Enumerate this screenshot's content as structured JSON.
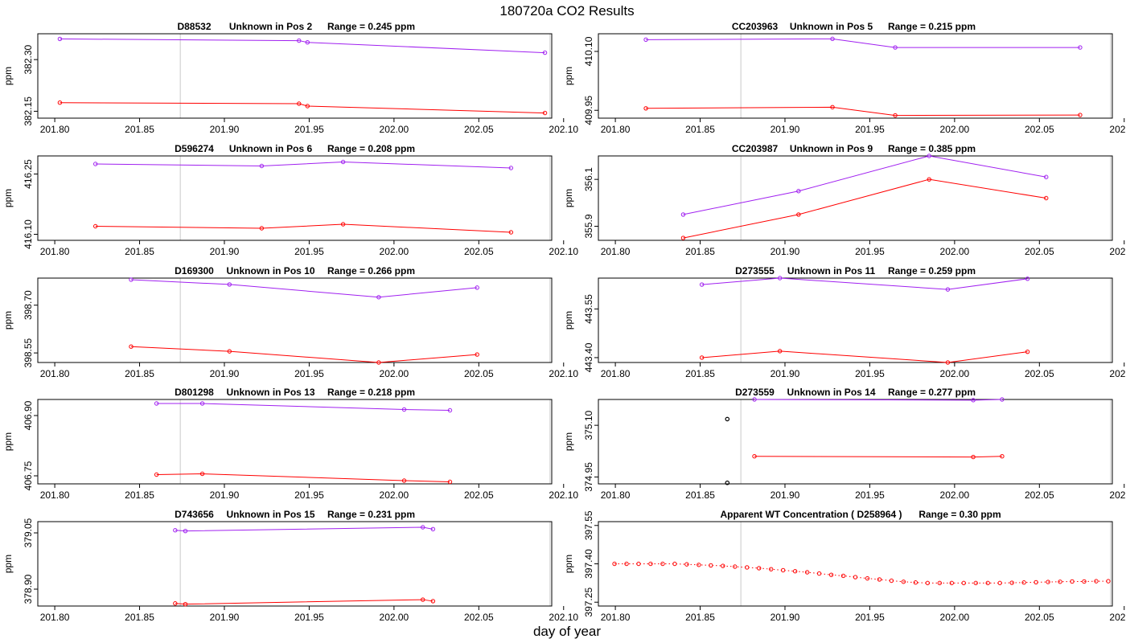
{
  "page_title": "180720a  CO2 Results",
  "xlabel": "day of year",
  "ylabel": "ppm",
  "colors": {
    "series_a": "#a020f0",
    "series_b": "#ff0000",
    "marker": "#000000",
    "vline": "#c8c8c8",
    "frame": "#000000"
  },
  "x_ticks": [
    "201.80",
    "201.85",
    "201.90",
    "201.95",
    "202.00",
    "202.05",
    "202.10"
  ],
  "chart_data": [
    {
      "type": "line",
      "id": "D88532",
      "title_id": "D88532",
      "title_label": "Unknown in Pos 2",
      "title_range": "Range =  0.245 ppm",
      "xlim": [
        201.79,
        202.095
      ],
      "ylim": [
        382.13,
        382.375
      ],
      "ylabel": "ppm",
      "y_ticks": [
        "382.15",
        "382.30"
      ],
      "vlines": [
        201.874,
        202.092
      ],
      "series": [
        {
          "name": "upper",
          "color": "#a020f0",
          "x": [
            201.803,
            201.944,
            201.949,
            202.089
          ],
          "y": [
            382.36,
            382.355,
            382.35,
            382.32
          ]
        },
        {
          "name": "lower",
          "color": "#ff0000",
          "x": [
            201.803,
            201.944,
            201.949,
            202.089
          ],
          "y": [
            382.175,
            382.172,
            382.165,
            382.145
          ]
        }
      ]
    },
    {
      "type": "line",
      "id": "CC203963",
      "title_id": "CC203963",
      "title_label": "Unknown in Pos 5",
      "title_range": "Range =  0.215 ppm",
      "xlim": [
        201.79,
        202.103
      ],
      "ylim": [
        409.93,
        410.145
      ],
      "ylabel": "ppm",
      "y_ticks": [
        "409.95",
        "410.10"
      ],
      "vlines": [
        201.874,
        202.092
      ],
      "series": [
        {
          "name": "upper",
          "color": "#a020f0",
          "x": [
            201.818,
            201.928,
            201.965,
            202.074
          ],
          "y": [
            410.13,
            410.132,
            410.11,
            410.11
          ]
        },
        {
          "name": "lower",
          "color": "#ff0000",
          "x": [
            201.818,
            201.928,
            201.965,
            202.074
          ],
          "y": [
            409.955,
            409.958,
            409.937,
            409.938
          ]
        }
      ]
    },
    {
      "type": "line",
      "id": "D596274",
      "title_id": "D596274",
      "title_label": "Unknown in Pos 6",
      "title_range": "Range =  0.208 ppm",
      "xlim": [
        201.79,
        202.095
      ],
      "ylim": [
        416.085,
        416.295
      ],
      "ylabel": "ppm",
      "y_ticks": [
        "416.10",
        "416.25"
      ],
      "vlines": [
        201.874,
        202.092
      ],
      "series": [
        {
          "name": "upper",
          "color": "#a020f0",
          "x": [
            201.824,
            201.922,
            201.97,
            202.069
          ],
          "y": [
            416.275,
            416.27,
            416.28,
            416.265
          ]
        },
        {
          "name": "lower",
          "color": "#ff0000",
          "x": [
            201.824,
            201.922,
            201.97,
            202.069
          ],
          "y": [
            416.12,
            416.115,
            416.125,
            416.105
          ]
        }
      ]
    },
    {
      "type": "line",
      "id": "CC203987",
      "title_id": "CC203987",
      "title_label": "Unknown in Pos 9",
      "title_range": "Range =  0.385 ppm",
      "xlim": [
        201.79,
        202.103
      ],
      "ylim": [
        355.84,
        356.2
      ],
      "ylabel": "ppm",
      "y_ticks": [
        "355.9",
        "356.1"
      ],
      "vlines": [
        201.874,
        202.092
      ],
      "series": [
        {
          "name": "upper",
          "color": "#a020f0",
          "x": [
            201.84,
            201.908,
            201.985,
            202.054
          ],
          "y": [
            355.95,
            356.05,
            356.2,
            356.11
          ]
        },
        {
          "name": "lower",
          "color": "#ff0000",
          "x": [
            201.84,
            201.908,
            201.985,
            202.054
          ],
          "y": [
            355.85,
            355.95,
            356.1,
            356.02
          ]
        }
      ]
    },
    {
      "type": "line",
      "id": "D169300",
      "title_id": "D169300",
      "title_label": "Unknown in Pos 10",
      "title_range": "Range =  0.266 ppm",
      "xlim": [
        201.79,
        202.095
      ],
      "ylim": [
        398.52,
        398.785
      ],
      "ylabel": "ppm",
      "y_ticks": [
        "398.55",
        "398.70"
      ],
      "vlines": [
        201.874,
        202.092
      ],
      "series": [
        {
          "name": "upper",
          "color": "#a020f0",
          "x": [
            201.845,
            201.903,
            201.991,
            202.049
          ],
          "y": [
            398.78,
            398.765,
            398.725,
            398.755
          ]
        },
        {
          "name": "lower",
          "color": "#ff0000",
          "x": [
            201.845,
            201.903,
            201.991,
            202.049
          ],
          "y": [
            398.57,
            398.555,
            398.52,
            398.545
          ]
        }
      ]
    },
    {
      "type": "line",
      "id": "D273555",
      "title_id": "D273555",
      "title_label": "Unknown in Pos 11",
      "title_range": "Range =  0.259 ppm",
      "xlim": [
        201.79,
        202.103
      ],
      "ylim": [
        443.385,
        443.645
      ],
      "ylabel": "ppm",
      "y_ticks": [
        "443.40",
        "443.55"
      ],
      "vlines": [
        201.874,
        202.092
      ],
      "series": [
        {
          "name": "upper",
          "color": "#a020f0",
          "x": [
            201.851,
            201.897,
            201.996,
            202.043
          ],
          "y": [
            443.625,
            443.645,
            443.61,
            443.643
          ]
        },
        {
          "name": "lower",
          "color": "#ff0000",
          "x": [
            201.851,
            201.897,
            201.996,
            202.043
          ],
          "y": [
            443.4,
            443.42,
            443.385,
            443.418
          ]
        }
      ]
    },
    {
      "type": "line",
      "id": "D801298",
      "title_id": "D801298",
      "title_label": "Unknown in Pos 13",
      "title_range": "Range =  0.218 ppm",
      "xlim": [
        201.79,
        202.095
      ],
      "ylim": [
        406.73,
        406.94
      ],
      "ylabel": "ppm",
      "y_ticks": [
        "406.75",
        "406.90"
      ],
      "vlines": [
        201.874,
        202.092
      ],
      "series": [
        {
          "name": "upper",
          "color": "#a020f0",
          "x": [
            201.86,
            201.887,
            202.006,
            202.033
          ],
          "y": [
            406.93,
            406.93,
            406.915,
            406.913
          ]
        },
        {
          "name": "lower",
          "color": "#ff0000",
          "x": [
            201.86,
            201.887,
            202.006,
            202.033
          ],
          "y": [
            406.753,
            406.755,
            406.738,
            406.735
          ]
        }
      ]
    },
    {
      "type": "line",
      "id": "D273559",
      "title_id": "D273559",
      "title_label": "Unknown in Pos 14",
      "title_range": "Range =  0.277 ppm",
      "xlim": [
        201.79,
        202.103
      ],
      "ylim": [
        374.93,
        375.175
      ],
      "ylabel": "ppm",
      "y_ticks": [
        "374.95",
        "375.10"
      ],
      "vlines": [
        201.874,
        202.092
      ],
      "series": [
        {
          "name": "upper",
          "color": "#a020f0",
          "x": [
            201.882,
            202.011,
            202.028
          ],
          "y": [
            375.175,
            375.173,
            375.175
          ]
        },
        {
          "name": "lower",
          "color": "#ff0000",
          "x": [
            201.882,
            202.011,
            202.028
          ],
          "y": [
            375.01,
            375.008,
            375.01
          ]
        }
      ],
      "markers": [
        {
          "x": 201.866,
          "y": 375.118
        },
        {
          "x": 201.866,
          "y": 374.933
        }
      ]
    },
    {
      "type": "line",
      "id": "D743656",
      "title_id": "D743656",
      "title_label": "Unknown in Pos 15",
      "title_range": "Range =  0.231 ppm",
      "xlim": [
        201.79,
        202.095
      ],
      "ylim": [
        378.855,
        379.08
      ],
      "ylabel": "ppm",
      "y_ticks": [
        "378.90",
        "379.05"
      ],
      "vlines": [
        201.874,
        202.092
      ],
      "series": [
        {
          "name": "upper",
          "color": "#a020f0",
          "x": [
            201.871,
            201.877,
            202.017,
            202.023
          ],
          "y": [
            379.057,
            379.055,
            379.065,
            379.06
          ]
        },
        {
          "name": "lower",
          "color": "#ff0000",
          "x": [
            201.871,
            201.877,
            202.017,
            202.023
          ],
          "y": [
            378.862,
            378.86,
            378.872,
            378.868
          ]
        }
      ]
    },
    {
      "type": "scatter",
      "id": "WT",
      "title_id": "Apparent WT Concentration ( D258964 )",
      "title_label": "",
      "title_range": "Range = 0.30 ppm",
      "xlim": [
        201.79,
        202.103
      ],
      "ylim": [
        397.235,
        397.565
      ],
      "ylabel": "ppm",
      "y_ticks": [
        "397.25",
        "397.40",
        "397.55"
      ],
      "vlines": [
        201.874,
        202.092
      ],
      "series": [
        {
          "name": "wt",
          "color": "#ff0000",
          "dotted": true,
          "x": [
            201.7995,
            201.8066,
            201.8137,
            201.8208,
            201.8279,
            201.835,
            201.8421,
            201.8492,
            201.8563,
            201.8634,
            201.8705,
            201.8776,
            201.8847,
            201.8918,
            201.8989,
            201.906,
            201.9131,
            201.9202,
            201.9273,
            201.9344,
            201.9415,
            201.9486,
            201.9557,
            201.9628,
            201.9699,
            201.977,
            201.9841,
            201.9912,
            201.9983,
            202.0054,
            202.0125,
            202.0196,
            202.0267,
            202.0338,
            202.0409,
            202.048,
            202.0551,
            202.0622,
            202.0693,
            202.0764,
            202.0835,
            202.0906
          ],
          "y": [
            397.4,
            397.4,
            397.4,
            397.4,
            397.4,
            397.4,
            397.398,
            397.396,
            397.394,
            397.392,
            397.389,
            397.386,
            397.383,
            397.379,
            397.375,
            397.371,
            397.367,
            397.362,
            397.357,
            397.353,
            397.348,
            397.343,
            397.339,
            397.334,
            397.33,
            397.327,
            397.325,
            397.325,
            397.325,
            397.325,
            397.325,
            397.325,
            397.325,
            397.326,
            397.327,
            397.328,
            397.329,
            397.33,
            397.331,
            397.331,
            397.332,
            397.332
          ]
        }
      ]
    }
  ]
}
